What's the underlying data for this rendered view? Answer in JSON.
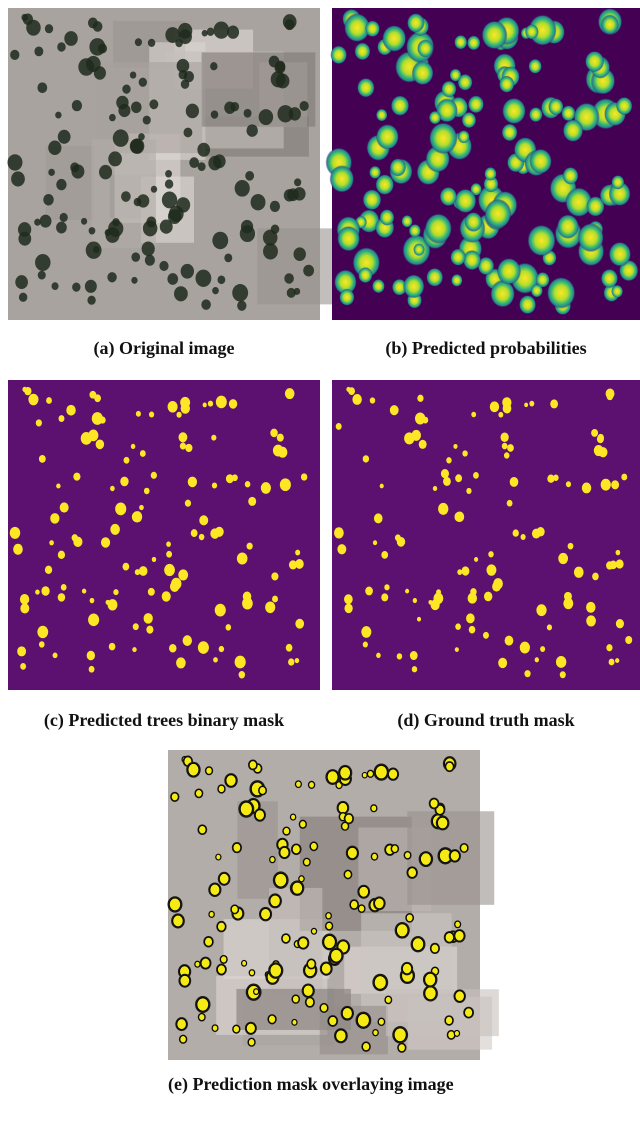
{
  "figures": [
    {
      "caption": "(a) Original image"
    },
    {
      "caption": "(b) Predicted probabilities"
    },
    {
      "caption": "(c) Predicted trees binary mask"
    },
    {
      "caption": "(d) Ground truth mask"
    },
    {
      "caption": "(e) Prediction mask overlaying image"
    }
  ]
}
